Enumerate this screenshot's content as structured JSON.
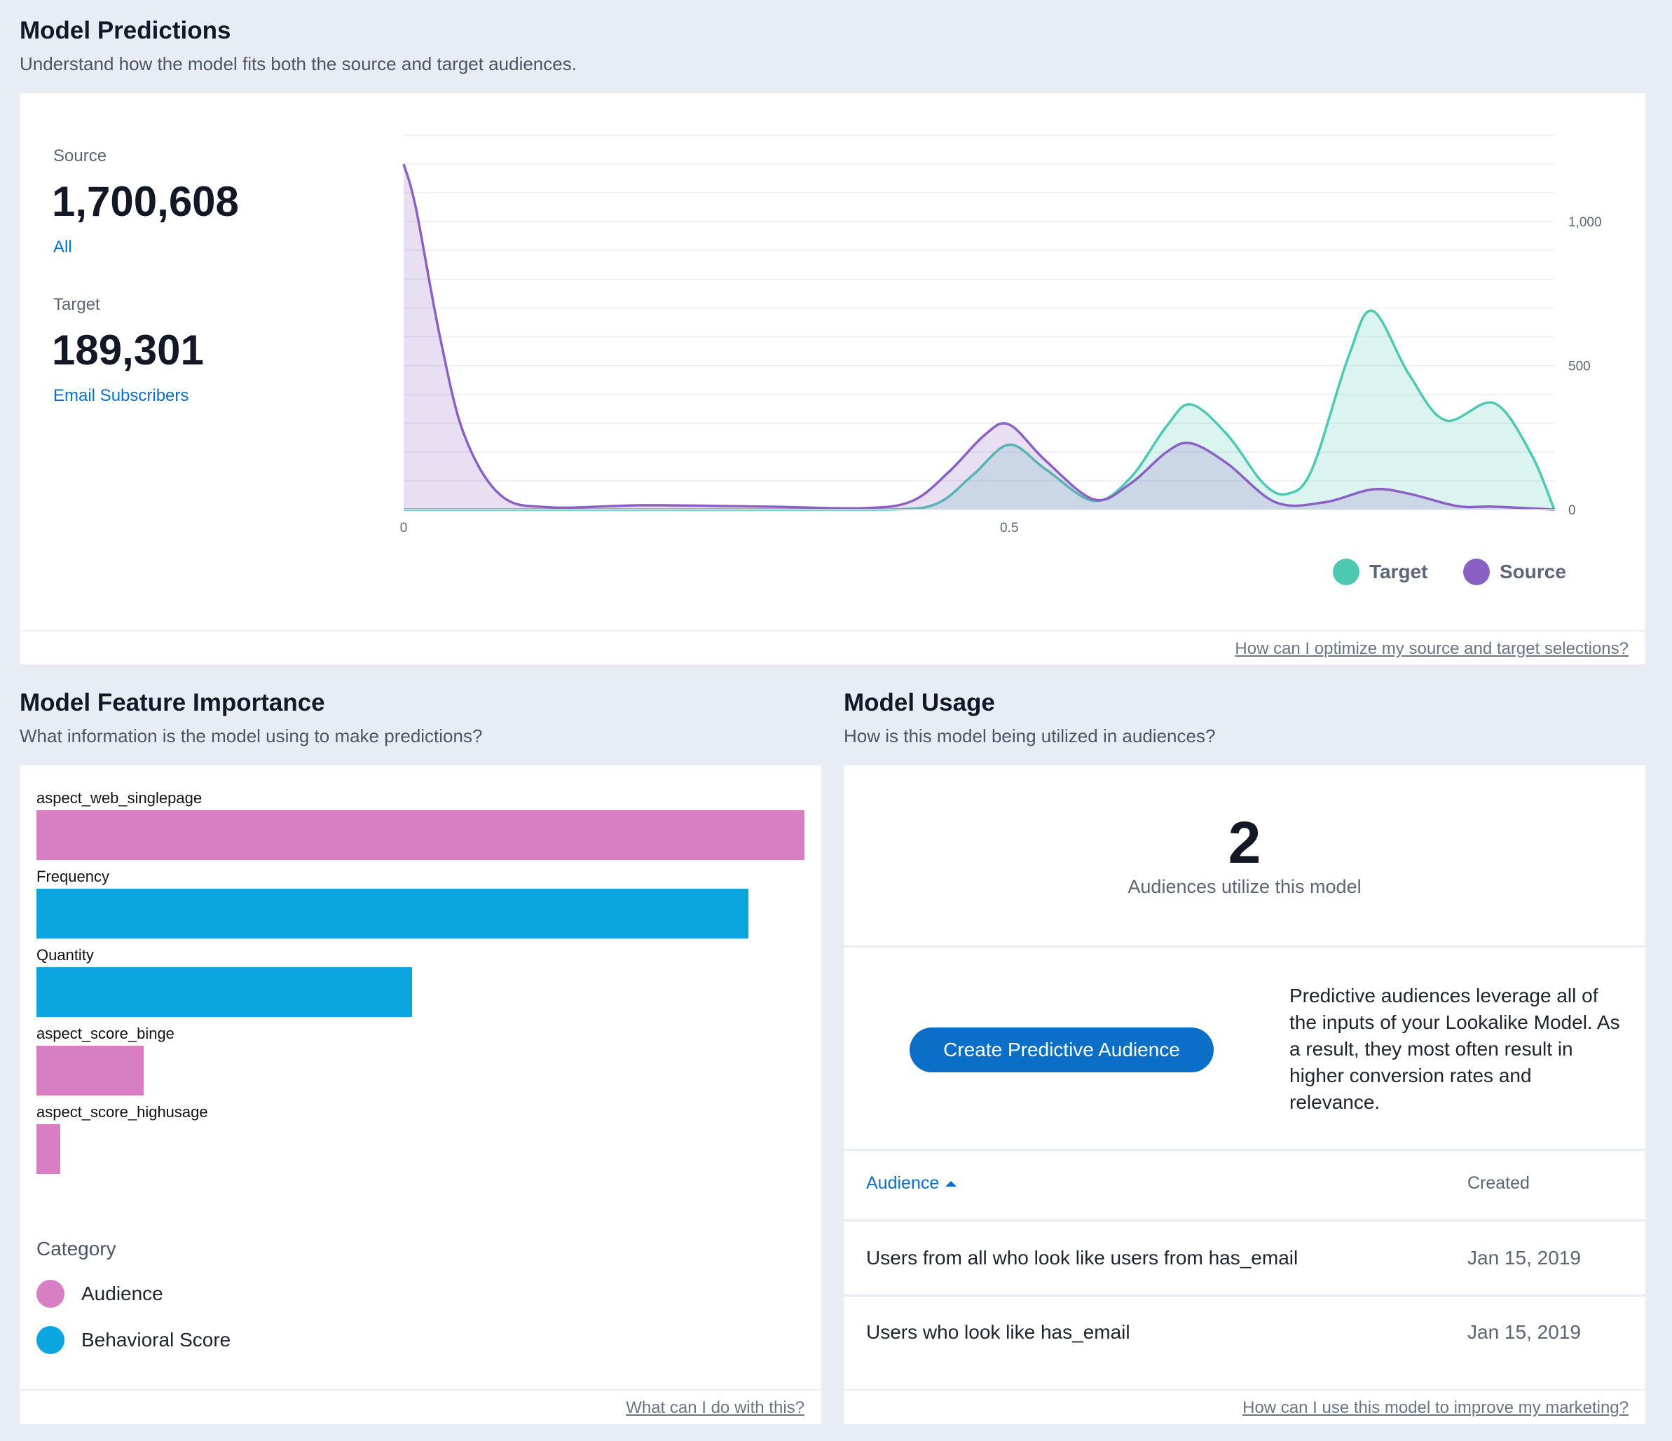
{
  "predictions": {
    "title": "Model Predictions",
    "subtitle": "Understand how the model fits both the source and target audiences.",
    "source_label": "Source",
    "source_value": "1,700,608",
    "source_link": "All",
    "target_label": "Target",
    "target_value": "189,301",
    "target_link": "Email Subscribers",
    "help_link": "How can I optimize my source and target selections?"
  },
  "chart_data": {
    "type": "area",
    "xlim": [
      0,
      0.95
    ],
    "ylim": [
      0,
      1300
    ],
    "x_ticks": [
      {
        "value": 0,
        "label": "0"
      },
      {
        "value": 0.5,
        "label": "0.5"
      }
    ],
    "y_ticks": [
      {
        "value": 0,
        "label": "0"
      },
      {
        "value": 500,
        "label": "500"
      },
      {
        "value": 1000,
        "label": "1,000"
      }
    ],
    "grid": true,
    "legend_position": "bottom-right",
    "series": [
      {
        "name": "Target",
        "color": "#4cc9b0",
        "x": [
          0,
          0.1,
          0.2,
          0.3,
          0.4,
          0.44,
          0.47,
          0.5,
          0.53,
          0.57,
          0.6,
          0.63,
          0.65,
          0.68,
          0.71,
          0.73,
          0.75,
          0.78,
          0.8,
          0.83,
          0.86,
          0.9,
          0.93,
          0.95
        ],
        "y": [
          0,
          0,
          0,
          0,
          0,
          20,
          120,
          225,
          140,
          30,
          110,
          290,
          365,
          260,
          90,
          55,
          140,
          530,
          690,
          470,
          310,
          370,
          200,
          0
        ]
      },
      {
        "name": "Source",
        "color": "#8b60c4",
        "x": [
          0,
          0.01,
          0.03,
          0.05,
          0.08,
          0.12,
          0.2,
          0.3,
          0.38,
          0.42,
          0.45,
          0.48,
          0.5,
          0.53,
          0.57,
          0.6,
          0.63,
          0.65,
          0.68,
          0.72,
          0.76,
          0.8,
          0.83,
          0.87,
          0.9,
          0.95
        ],
        "y": [
          1200,
          1050,
          600,
          260,
          50,
          8,
          15,
          10,
          5,
          30,
          130,
          260,
          295,
          170,
          35,
          90,
          200,
          230,
          160,
          25,
          25,
          70,
          55,
          12,
          10,
          0
        ]
      }
    ]
  },
  "feature_importance": {
    "title": "Model Feature Importance",
    "subtitle": "What information is the model using to make predictions?",
    "max_value": 1.0,
    "features": [
      {
        "name": "aspect_web_singlepage",
        "value": 1.0,
        "category": "Audience"
      },
      {
        "name": "Frequency",
        "value": 0.927,
        "category": "Behavioral Score"
      },
      {
        "name": "Quantity",
        "value": 0.489,
        "category": "Behavioral Score"
      },
      {
        "name": "aspect_score_binge",
        "value": 0.14,
        "category": "Audience"
      },
      {
        "name": "aspect_score_highusage",
        "value": 0.031,
        "category": "Audience"
      }
    ],
    "category_title": "Category",
    "categories": [
      {
        "name": "Audience",
        "color": "#d87fc4"
      },
      {
        "name": "Behavioral Score",
        "color": "#0ba5e0"
      }
    ],
    "help_link": "What can I do with this?"
  },
  "usage": {
    "title": "Model Usage",
    "subtitle": "How is this model being utilized in audiences?",
    "count": "2",
    "count_caption": "Audiences utilize this model",
    "button_label": "Create Predictive Audience",
    "description": "Predictive audiences leverage all of the inputs of your Lookalike Model. As a result, they most often result in higher conversion rates and relevance.",
    "table": {
      "col_audience": "Audience",
      "col_created": "Created",
      "rows": [
        {
          "audience": "Users from all who look like users from has_email",
          "created": "Jan 15, 2019"
        },
        {
          "audience": "Users who look like has_email",
          "created": "Jan 15, 2019"
        }
      ]
    },
    "help_link": "How can I use this model to improve my marketing?"
  },
  "colors": {
    "link": "#0b6fc7",
    "page_bg": "#e8edf4",
    "target": "#4cc9b0",
    "source": "#8b60c4"
  }
}
